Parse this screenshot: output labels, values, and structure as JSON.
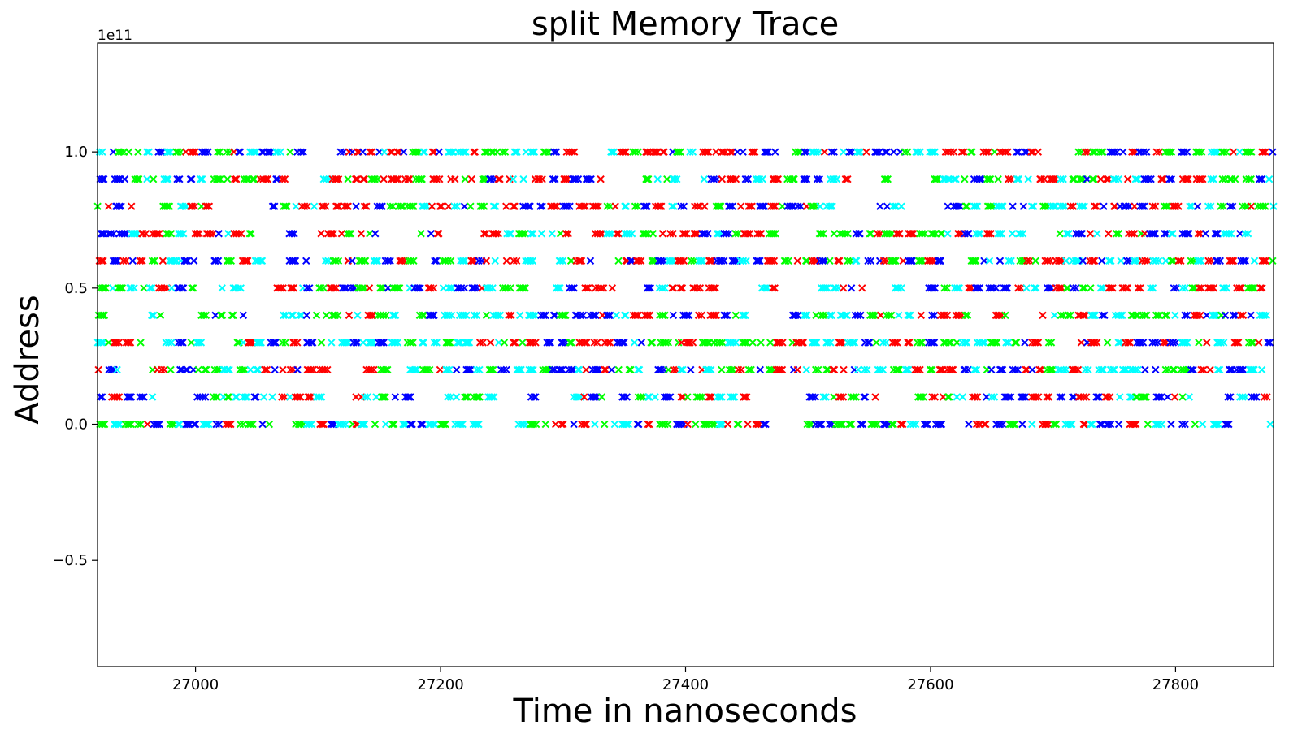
{
  "chart_data": {
    "type": "scatter",
    "title": "split Memory Trace",
    "xlabel": "Time in nanoseconds",
    "ylabel": "Address",
    "y_offset_text": "1e11",
    "xlim": [
      26920,
      27880
    ],
    "ylim": [
      -0.89,
      1.4
    ],
    "xticks": [
      27000,
      27200,
      27400,
      27600,
      27800
    ],
    "xtick_labels": [
      "27000",
      "27200",
      "27400",
      "27600",
      "27800"
    ],
    "yticks": [
      -0.5,
      0.0,
      0.5,
      1.0
    ],
    "ytick_labels": [
      "−0.5",
      "0.0",
      "0.5",
      "1.0"
    ],
    "grid": false,
    "marker": "x",
    "series_colors": [
      "#ff0000",
      "#0000ff",
      "#00ffff",
      "#00ff00"
    ],
    "address_levels": [
      0.0,
      0.1,
      0.2,
      0.3,
      0.4,
      0.5,
      0.6,
      0.7,
      0.8,
      0.9,
      1.0
    ],
    "x_range": [
      26920,
      27880
    ],
    "point_density": 4
  }
}
